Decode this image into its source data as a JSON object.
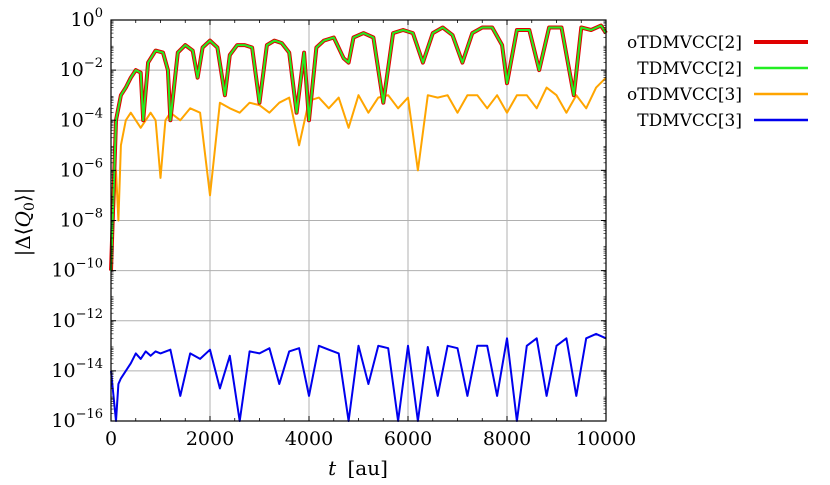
{
  "chart_data": {
    "type": "line",
    "xlabel": "t [au]",
    "xlabel_var": "t",
    "xlabel_unit": "[au]",
    "ylabel": "|Δ⟨Q0⟩|",
    "ylabel_parts": {
      "left": "|Δ⟨",
      "var": "Q",
      "sub": "0",
      "right": "⟩|"
    },
    "x_range": [
      0,
      10000
    ],
    "y_range": [
      1e-16,
      1
    ],
    "y_scale": "log",
    "grid": true,
    "legend_position": "outside-right",
    "x_ticks": [
      "0",
      "2000",
      "4000",
      "6000",
      "8000",
      "10000"
    ],
    "y_ticks": [
      {
        "base": "10",
        "exp": "0"
      },
      {
        "base": "10",
        "exp": "−2"
      },
      {
        "base": "10",
        "exp": "−4"
      },
      {
        "base": "10",
        "exp": "−6"
      },
      {
        "base": "10",
        "exp": "−8"
      },
      {
        "base": "10",
        "exp": "−10"
      },
      {
        "base": "10",
        "exp": "−12"
      },
      {
        "base": "10",
        "exp": "−14"
      },
      {
        "base": "10",
        "exp": "−16"
      }
    ],
    "series": [
      {
        "name": "oTDMVCC[2]",
        "color": "#e00000",
        "style": "thick",
        "x": [
          0,
          100,
          200,
          300,
          400,
          500,
          600,
          650,
          750,
          900,
          1050,
          1150,
          1200,
          1350,
          1500,
          1650,
          1750,
          1850,
          2000,
          2150,
          2300,
          2400,
          2550,
          2700,
          2850,
          3000,
          3150,
          3300,
          3450,
          3600,
          3750,
          3900,
          4000,
          4150,
          4300,
          4500,
          4700,
          4800,
          4900,
          5100,
          5300,
          5500,
          5700,
          5900,
          6100,
          6300,
          6500,
          6700,
          6900,
          7100,
          7300,
          7500,
          7700,
          7900,
          8000,
          8200,
          8450,
          8650,
          8850,
          9100,
          9350,
          9500,
          9700,
          9900,
          10000
        ],
        "y": [
          1e-10,
          0.0001,
          0.001,
          0.002,
          0.005,
          0.01,
          0.008,
          0.0001,
          0.02,
          0.06,
          0.05,
          0.01,
          0.0001,
          0.05,
          0.1,
          0.06,
          0.005,
          0.08,
          0.15,
          0.08,
          0.001,
          0.04,
          0.1,
          0.1,
          0.08,
          0.0005,
          0.1,
          0.15,
          0.12,
          0.05,
          0.0002,
          0.05,
          0.0001,
          0.08,
          0.15,
          0.2,
          0.03,
          0.02,
          0.2,
          0.3,
          0.2,
          0.0005,
          0.3,
          0.4,
          0.3,
          0.02,
          0.3,
          0.5,
          0.25,
          0.02,
          0.3,
          0.5,
          0.5,
          0.1,
          0.003,
          0.4,
          0.4,
          0.01,
          0.5,
          0.5,
          0.001,
          0.5,
          0.4,
          0.6,
          0.3
        ]
      },
      {
        "name": "TDMVCC[2]",
        "color": "#22ee22",
        "style": "normal",
        "x": [
          0,
          100,
          200,
          300,
          400,
          500,
          600,
          650,
          750,
          900,
          1050,
          1150,
          1200,
          1350,
          1500,
          1650,
          1750,
          1850,
          2000,
          2150,
          2300,
          2400,
          2550,
          2700,
          2850,
          3000,
          3150,
          3300,
          3450,
          3600,
          3750,
          3900,
          4000,
          4150,
          4300,
          4500,
          4700,
          4800,
          4900,
          5100,
          5300,
          5500,
          5700,
          5900,
          6100,
          6300,
          6500,
          6700,
          6900,
          7100,
          7300,
          7500,
          7700,
          7900,
          8000,
          8200,
          8450,
          8650,
          8850,
          9100,
          9350,
          9500,
          9700,
          9900,
          10000
        ],
        "y": [
          1e-10,
          0.0001,
          0.001,
          0.002,
          0.005,
          0.01,
          0.008,
          0.0001,
          0.02,
          0.06,
          0.05,
          0.01,
          0.0001,
          0.05,
          0.1,
          0.06,
          0.005,
          0.08,
          0.15,
          0.08,
          0.001,
          0.04,
          0.1,
          0.1,
          0.08,
          0.0005,
          0.1,
          0.15,
          0.12,
          0.05,
          0.0002,
          0.05,
          0.0001,
          0.08,
          0.15,
          0.2,
          0.03,
          0.02,
          0.2,
          0.3,
          0.2,
          0.0005,
          0.3,
          0.4,
          0.3,
          0.02,
          0.3,
          0.5,
          0.25,
          0.02,
          0.3,
          0.5,
          0.5,
          0.1,
          0.003,
          0.4,
          0.4,
          0.01,
          0.5,
          0.5,
          0.001,
          0.5,
          0.4,
          0.6,
          0.3
        ]
      },
      {
        "name": "oTDMVCC[3]",
        "color": "#ffa500",
        "style": "normal",
        "x": [
          0,
          100,
          150,
          200,
          300,
          400,
          500,
          600,
          700,
          800,
          900,
          1000,
          1100,
          1200,
          1400,
          1600,
          1800,
          2000,
          2200,
          2400,
          2600,
          2800,
          3000,
          3200,
          3400,
          3600,
          3800,
          4000,
          4200,
          4400,
          4600,
          4800,
          5000,
          5200,
          5400,
          5600,
          5800,
          6000,
          6200,
          6400,
          6600,
          6800,
          7000,
          7200,
          7400,
          7600,
          7800,
          8000,
          8200,
          8400,
          8600,
          8800,
          9000,
          9200,
          9400,
          9600,
          9800,
          10000
        ],
        "y": [
          1e-10,
          1e-06,
          1e-08,
          1e-05,
          0.0001,
          0.0002,
          0.0001,
          5e-05,
          0.0001,
          0.0002,
          0.0001,
          5e-07,
          0.0001,
          0.0002,
          0.0001,
          0.0003,
          0.0002,
          1e-07,
          0.0005,
          0.0003,
          0.0002,
          0.0005,
          0.0004,
          0.0002,
          0.0005,
          0.0008,
          1e-05,
          0.0006,
          0.0008,
          0.0003,
          0.0008,
          5e-05,
          0.001,
          0.0002,
          0.0008,
          0.001,
          0.0003,
          0.0008,
          1e-06,
          0.001,
          0.0008,
          0.001,
          0.0002,
          0.001,
          0.001,
          0.0003,
          0.001,
          0.0002,
          0.001,
          0.001,
          0.0003,
          0.002,
          0.001,
          0.0002,
          0.001,
          0.0003,
          0.002,
          0.005
        ]
      },
      {
        "name": "TDMVCC[3]",
        "color": "#0000ee",
        "style": "normal",
        "x": [
          0,
          50,
          100,
          150,
          200,
          300,
          400,
          500,
          600,
          700,
          800,
          900,
          1000,
          1200,
          1400,
          1600,
          1800,
          2000,
          2200,
          2400,
          2600,
          2800,
          3000,
          3200,
          3400,
          3600,
          3800,
          4000,
          4200,
          4400,
          4600,
          4800,
          5000,
          5200,
          5400,
          5600,
          5800,
          6000,
          6200,
          6400,
          6600,
          6800,
          7000,
          7200,
          7400,
          7600,
          7800,
          8000,
          8200,
          8400,
          8600,
          8800,
          9000,
          9200,
          9400,
          9600,
          9800,
          10000
        ],
        "y": [
          1e-14,
          1e-15,
          1e-16,
          3e-15,
          5e-15,
          1e-14,
          2e-14,
          5e-14,
          3e-14,
          6e-14,
          4e-14,
          6e-14,
          5e-14,
          7e-14,
          1e-15,
          5e-14,
          3e-14,
          7e-14,
          2e-15,
          4e-14,
          1e-16,
          6e-14,
          5e-14,
          8e-14,
          3e-15,
          6e-14,
          8e-14,
          1e-15,
          1e-13,
          7e-14,
          5e-14,
          1e-16,
          1e-13,
          3e-15,
          1e-13,
          8e-14,
          1e-16,
          1e-13,
          1e-16,
          9e-14,
          1e-15,
          1e-13,
          8e-14,
          1e-15,
          1e-13,
          1e-13,
          1e-15,
          2e-13,
          1e-16,
          1e-13,
          2e-13,
          1e-15,
          1e-13,
          2e-13,
          1e-15,
          2e-13,
          3e-13,
          2e-13
        ]
      }
    ]
  }
}
